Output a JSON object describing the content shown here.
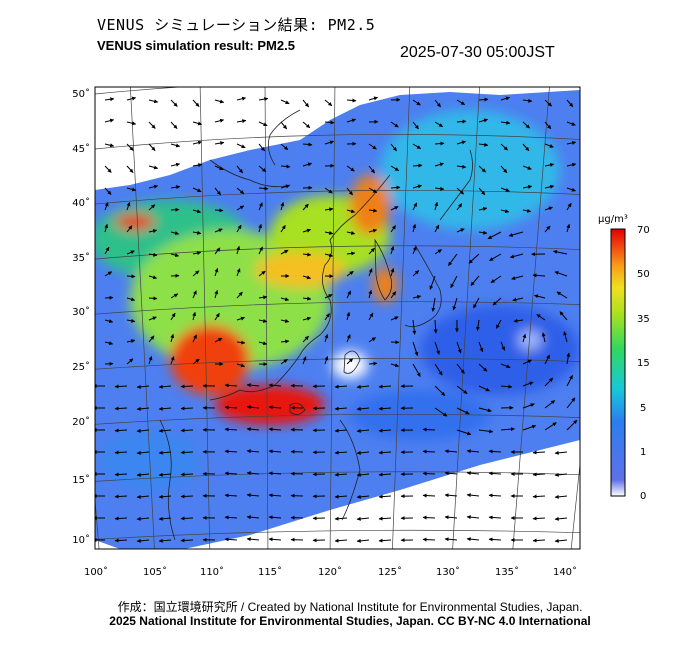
{
  "title_jp": "VENUS シミュレーション結果: PM2.5",
  "title_en": "VENUS simulation result: PM2.5",
  "datetime": "2025-07-30 05:00JST",
  "lat_ticks": [
    "50˚",
    "45˚",
    "40˚",
    "35˚",
    "30˚",
    "25˚",
    "20˚",
    "15˚",
    "10˚"
  ],
  "lon_ticks": [
    "100˚",
    "105˚",
    "110˚",
    "115˚",
    "120˚",
    "125˚",
    "130˚",
    "135˚",
    "140˚"
  ],
  "colorbar": {
    "unit": "µg/m³",
    "ticks": [
      "70",
      "50",
      "35",
      "15",
      "5",
      "1",
      "0"
    ],
    "colors": [
      "#ffffff",
      "#4a5fe0",
      "#2a8ef0",
      "#1ad0d0",
      "#30d860",
      "#a8e020",
      "#f0e020",
      "#f8a018",
      "#f04010",
      "#e00000"
    ]
  },
  "credit_line1": "作成：国立環境研究所 / Created by National Institute for Environmental Studies, Japan.",
  "credit_line2": "2025 National Institute for Environmental Studies, Japan. CC BY-NC 4.0 International"
}
